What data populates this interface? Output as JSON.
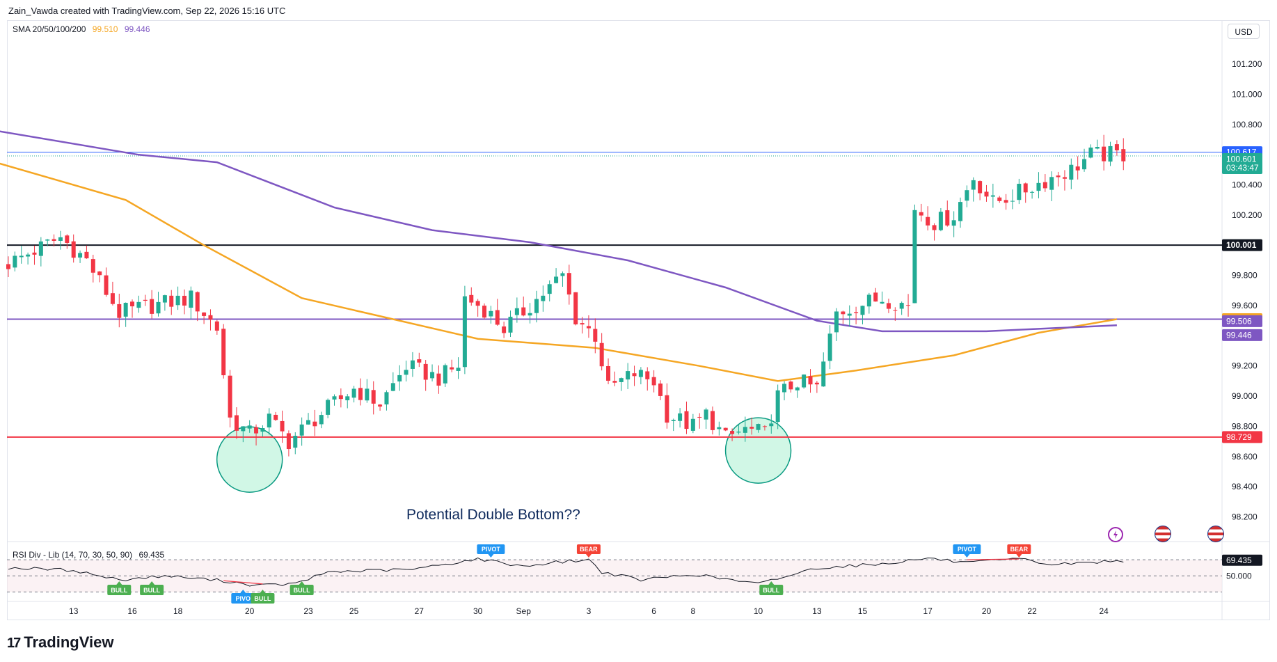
{
  "header": {
    "text": "Zain_Vawda created with TradingView.com, Sep 22, 2026 15:16 UTC"
  },
  "sma_legend": {
    "label": "SMA 20/50/100/200",
    "value_1": "99.510",
    "value_2": "99.446"
  },
  "rsi_legend": {
    "label": "RSI Div - Lib (14, 70, 30, 50, 90)",
    "value": "69.435"
  },
  "currency_button": "USD",
  "annotation": "Potential Double Bottom??",
  "logo": {
    "text": "TradingView",
    "mark": "17"
  },
  "colors": {
    "up": "#22ab94",
    "down": "#f23645",
    "sma_orange": "#f5a623",
    "sma_purple": "#7e57c2",
    "line_blue": "#2962ff",
    "line_black": "#131722",
    "line_red": "#f23645",
    "circle_fill": "#d1f7e6",
    "circle_stroke": "#089981"
  },
  "chart_data": {
    "type": "candlestick",
    "title": "",
    "currency": "USD",
    "ylim": [
      98.05,
      101.45
    ],
    "y_ticks": [
      "101.200",
      "101.000",
      "100.800",
      "100.400",
      "100.200",
      "99.800",
      "99.600",
      "99.200",
      "99.000",
      "98.800",
      "98.600",
      "98.400",
      "98.200"
    ],
    "y_tick_values": [
      101.2,
      101.0,
      100.8,
      100.4,
      100.2,
      99.8,
      99.6,
      99.2,
      99.0,
      98.8,
      98.6,
      98.4,
      98.2
    ],
    "x_ticks": [
      "13",
      "16",
      "18",
      "20",
      "23",
      "25",
      "27",
      "30",
      "Sep",
      "3",
      "6",
      "8",
      "10",
      "13",
      "15",
      "17",
      "20",
      "22",
      "24"
    ],
    "x_tick_bars": [
      10,
      19,
      26,
      37,
      46,
      53,
      63,
      72,
      79,
      89,
      99,
      105,
      115,
      124,
      131,
      141,
      150,
      157,
      168
    ],
    "bar_count": 172,
    "horizontal_lines": [
      {
        "value": 100.617,
        "color": "blue",
        "label": "100.617"
      },
      {
        "value": 100.001,
        "color": "black",
        "label": "100.001"
      },
      {
        "value": 99.51,
        "color": "purple",
        "label": ""
      },
      {
        "value": 98.729,
        "color": "red",
        "label": "98.729"
      }
    ],
    "price_labels": [
      {
        "text": "100.617",
        "value": 100.617,
        "color": "blue"
      },
      {
        "text": "100.601",
        "sub": "03:43:47",
        "value": 100.601,
        "color": "green"
      },
      {
        "text": "100.001",
        "value": 100.001,
        "color": "black"
      },
      {
        "text": "99.510",
        "value": 99.51,
        "color": "orange"
      },
      {
        "text": "99.506",
        "value": 99.506,
        "color": "purple"
      },
      {
        "text": "99.446",
        "value": 99.446,
        "color": "purple"
      },
      {
        "text": "98.729",
        "value": 98.729,
        "color": "red"
      }
    ],
    "anchors": [
      [
        0,
        99.88
      ],
      [
        8,
        100.05
      ],
      [
        12,
        99.9
      ],
      [
        17,
        99.55
      ],
      [
        22,
        99.6
      ],
      [
        28,
        99.65
      ],
      [
        32,
        99.45
      ],
      [
        34,
        98.85
      ],
      [
        37,
        98.75
      ],
      [
        40,
        98.85
      ],
      [
        43,
        98.7
      ],
      [
        47,
        98.85
      ],
      [
        53,
        99.05
      ],
      [
        57,
        98.95
      ],
      [
        61,
        99.2
      ],
      [
        66,
        99.12
      ],
      [
        69,
        99.2
      ],
      [
        70,
        99.65
      ],
      [
        73,
        99.58
      ],
      [
        76,
        99.45
      ],
      [
        80,
        99.6
      ],
      [
        85,
        99.8
      ],
      [
        87,
        99.52
      ],
      [
        90,
        99.4
      ],
      [
        92,
        99.05
      ],
      [
        96,
        99.15
      ],
      [
        99,
        99.1
      ],
      [
        101,
        98.88
      ],
      [
        105,
        98.8
      ],
      [
        107,
        98.88
      ],
      [
        110,
        98.72
      ],
      [
        113,
        98.78
      ],
      [
        116,
        98.75
      ],
      [
        118,
        99.0
      ],
      [
        121,
        99.1
      ],
      [
        124,
        99.05
      ],
      [
        127,
        99.55
      ],
      [
        130,
        99.6
      ],
      [
        134,
        99.65
      ],
      [
        138,
        99.6
      ],
      [
        139,
        100.25
      ],
      [
        142,
        100.15
      ],
      [
        145,
        100.2
      ],
      [
        148,
        100.45
      ],
      [
        151,
        100.28
      ],
      [
        155,
        100.35
      ],
      [
        160,
        100.45
      ],
      [
        163,
        100.5
      ],
      [
        166,
        100.6
      ],
      [
        171,
        100.601
      ]
    ],
    "sma_orange": [
      [
        -2,
        100.55
      ],
      [
        18,
        100.3
      ],
      [
        30,
        100.0
      ],
      [
        45,
        99.65
      ],
      [
        58,
        99.52
      ],
      [
        72,
        99.38
      ],
      [
        90,
        99.32
      ],
      [
        106,
        99.2
      ],
      [
        118,
        99.1
      ],
      [
        130,
        99.17
      ],
      [
        145,
        99.27
      ],
      [
        158,
        99.42
      ],
      [
        170,
        99.51
      ]
    ],
    "sma_purple": [
      [
        -2,
        100.76
      ],
      [
        20,
        100.6
      ],
      [
        32,
        100.55
      ],
      [
        50,
        100.25
      ],
      [
        65,
        100.1
      ],
      [
        80,
        100.02
      ],
      [
        95,
        99.9
      ],
      [
        110,
        99.72
      ],
      [
        124,
        99.5
      ],
      [
        134,
        99.43
      ],
      [
        150,
        99.43
      ],
      [
        170,
        99.47
      ]
    ],
    "circles": [
      {
        "bar": 37,
        "value": 98.58,
        "r": 47
      },
      {
        "bar": 115,
        "value": 98.64,
        "r": 47
      }
    ],
    "rsi": {
      "levels": [
        70,
        50,
        30
      ],
      "level_labels": [
        "69.435",
        "50.000"
      ],
      "ylim": [
        20,
        90
      ],
      "anchors": [
        [
          0,
          60
        ],
        [
          10,
          57
        ],
        [
          17,
          45
        ],
        [
          24,
          50
        ],
        [
          33,
          44
        ],
        [
          38,
          38
        ],
        [
          44,
          40
        ],
        [
          49,
          55
        ],
        [
          62,
          58
        ],
        [
          72,
          71
        ],
        [
          79,
          62
        ],
        [
          84,
          67
        ],
        [
          89,
          70
        ],
        [
          91,
          55
        ],
        [
          97,
          45
        ],
        [
          105,
          52
        ],
        [
          115,
          40
        ],
        [
          124,
          60
        ],
        [
          134,
          65
        ],
        [
          141,
          72
        ],
        [
          147,
          66
        ],
        [
          155,
          71
        ],
        [
          160,
          64
        ],
        [
          171,
          69
        ]
      ],
      "signals": [
        {
          "text": "BULL",
          "bar": 17,
          "pos": "below",
          "color": "green"
        },
        {
          "text": "BULL",
          "bar": 22,
          "pos": "below",
          "color": "green"
        },
        {
          "text": "PIVO",
          "bar": 36,
          "pos": "below",
          "color": "blue"
        },
        {
          "text": "BULL",
          "bar": 39,
          "pos": "below",
          "color": "green"
        },
        {
          "text": "BULL",
          "bar": 45,
          "pos": "below",
          "color": "green"
        },
        {
          "text": "PIVOT",
          "bar": 74,
          "pos": "above",
          "color": "blue"
        },
        {
          "text": "BEAR",
          "bar": 89,
          "pos": "above",
          "color": "red"
        },
        {
          "text": "BULL",
          "bar": 117,
          "pos": "below",
          "color": "green"
        },
        {
          "text": "PIVOT",
          "bar": 147,
          "pos": "above",
          "color": "blue"
        },
        {
          "text": "BEAR",
          "bar": 155,
          "pos": "above",
          "color": "red"
        }
      ]
    }
  }
}
